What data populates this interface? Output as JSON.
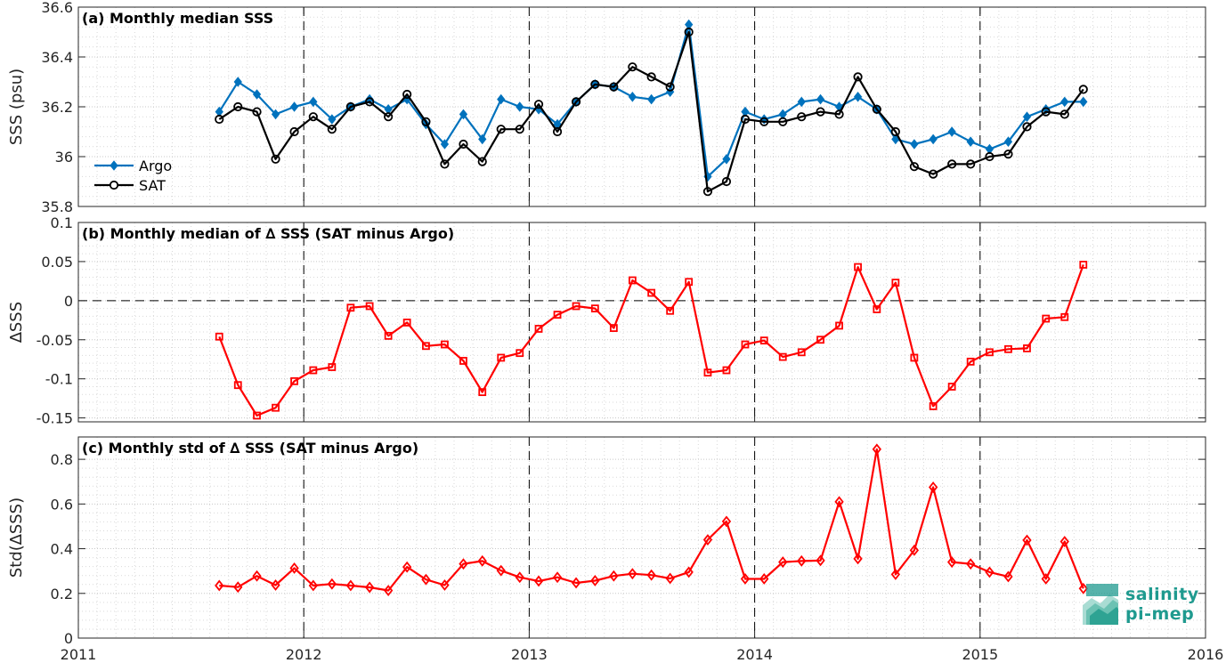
{
  "chart_data": [
    {
      "type": "line",
      "panel": "a",
      "title": "(a) Monthly median SSS",
      "ylabel": "SSS (psu)",
      "xlim": [
        2011,
        2016
      ],
      "ylim": [
        35.8,
        36.6
      ],
      "yticks": [
        "35.8",
        "36",
        "36.2",
        "36.4",
        "36.6"
      ],
      "yvals": [
        35.8,
        36.0,
        36.2,
        36.4,
        36.6
      ],
      "grid": true,
      "legend": "center-left",
      "series": [
        {
          "name": "Argo",
          "color": "#0072bd",
          "marker": "diamond",
          "x": [
            2011.625,
            2011.708,
            2011.792,
            2011.875,
            2011.958,
            2012.042,
            2012.125,
            2012.208,
            2012.292,
            2012.375,
            2012.458,
            2012.542,
            2012.625,
            2012.708,
            2012.792,
            2012.875,
            2012.958,
            2013.042,
            2013.125,
            2013.208,
            2013.292,
            2013.375,
            2013.458,
            2013.542,
            2013.625,
            2013.708,
            2013.792,
            2013.875,
            2013.958,
            2014.042,
            2014.125,
            2014.208,
            2014.292,
            2014.375,
            2014.458,
            2014.542,
            2014.625,
            2014.708,
            2014.792,
            2014.875,
            2014.958,
            2015.042,
            2015.125,
            2015.208,
            2015.292,
            2015.375,
            2015.458
          ],
          "y": [
            36.18,
            36.3,
            36.25,
            36.17,
            36.2,
            36.22,
            36.15,
            36.2,
            36.23,
            36.19,
            36.23,
            36.13,
            36.05,
            36.17,
            36.07,
            36.23,
            36.2,
            36.19,
            36.13,
            36.22,
            36.29,
            36.28,
            36.24,
            36.23,
            36.26,
            36.53,
            35.92,
            35.99,
            36.18,
            36.15,
            36.17,
            36.22,
            36.23,
            36.2,
            36.24,
            36.19,
            36.07,
            36.05,
            36.07,
            36.1,
            36.06,
            36.03,
            36.06,
            36.16,
            36.19,
            36.22,
            36.22
          ]
        },
        {
          "name": "SAT",
          "color": "#000000",
          "marker": "circle",
          "x": [
            2011.625,
            2011.708,
            2011.792,
            2011.875,
            2011.958,
            2012.042,
            2012.125,
            2012.208,
            2012.292,
            2012.375,
            2012.458,
            2012.542,
            2012.625,
            2012.708,
            2012.792,
            2012.875,
            2012.958,
            2013.042,
            2013.125,
            2013.208,
            2013.292,
            2013.375,
            2013.458,
            2013.542,
            2013.625,
            2013.708,
            2013.792,
            2013.875,
            2013.958,
            2014.042,
            2014.125,
            2014.208,
            2014.292,
            2014.375,
            2014.458,
            2014.542,
            2014.625,
            2014.708,
            2014.792,
            2014.875,
            2014.958,
            2015.042,
            2015.125,
            2015.208,
            2015.292,
            2015.375,
            2015.458
          ],
          "y": [
            36.15,
            36.2,
            36.18,
            35.99,
            36.1,
            36.16,
            36.11,
            36.2,
            36.22,
            36.16,
            36.25,
            36.14,
            35.97,
            36.05,
            35.98,
            36.11,
            36.11,
            36.21,
            36.1,
            36.22,
            36.29,
            36.28,
            36.36,
            36.32,
            36.28,
            36.5,
            35.86,
            35.9,
            36.15,
            36.14,
            36.14,
            36.16,
            36.18,
            36.17,
            36.32,
            36.19,
            36.1,
            35.96,
            35.93,
            35.97,
            35.97,
            36.0,
            36.01,
            36.12,
            36.18,
            36.17,
            36.27
          ]
        }
      ]
    },
    {
      "type": "line",
      "panel": "b",
      "title": "(b) Monthly median of ∆ SSS (SAT minus Argo)",
      "ylabel": "∆SSS",
      "xlim": [
        2011,
        2016
      ],
      "ylim": [
        -0.155,
        0.1
      ],
      "yticks": [
        "-0.15",
        "-0.1",
        "-0.05",
        "0",
        "0.05",
        "0.1"
      ],
      "yvals": [
        -0.15,
        -0.1,
        -0.05,
        0,
        0.05,
        0.1
      ],
      "zero_line": true,
      "grid": true,
      "series": [
        {
          "color": "#ff0000",
          "marker": "square",
          "x": [
            2011.625,
            2011.708,
            2011.792,
            2011.875,
            2011.958,
            2012.042,
            2012.125,
            2012.208,
            2012.292,
            2012.375,
            2012.458,
            2012.542,
            2012.625,
            2012.708,
            2012.792,
            2012.875,
            2012.958,
            2013.042,
            2013.125,
            2013.208,
            2013.292,
            2013.375,
            2013.458,
            2013.542,
            2013.625,
            2013.708,
            2013.792,
            2013.875,
            2013.958,
            2014.042,
            2014.125,
            2014.208,
            2014.292,
            2014.375,
            2014.458,
            2014.542,
            2014.625,
            2014.708,
            2014.792,
            2014.875,
            2014.958,
            2015.042,
            2015.125,
            2015.208,
            2015.292,
            2015.375,
            2015.458
          ],
          "y": [
            -0.046,
            -0.108,
            -0.147,
            -0.137,
            -0.103,
            -0.089,
            -0.085,
            -0.009,
            -0.007,
            -0.045,
            -0.028,
            -0.058,
            -0.056,
            -0.077,
            -0.117,
            -0.073,
            -0.067,
            -0.036,
            -0.018,
            -0.007,
            -0.01,
            -0.035,
            0.026,
            0.01,
            -0.013,
            0.024,
            -0.092,
            -0.089,
            -0.056,
            -0.051,
            -0.072,
            -0.066,
            -0.05,
            -0.032,
            0.043,
            -0.011,
            0.023,
            -0.073,
            -0.135,
            -0.11,
            -0.078,
            -0.066,
            -0.062,
            -0.061,
            -0.023,
            -0.021,
            0.046
          ]
        }
      ]
    },
    {
      "type": "line",
      "panel": "c",
      "title": "(c) Monthly std of ∆ SSS (SAT minus Argo)",
      "ylabel": "Std(∆SSS)",
      "xlim": [
        2011,
        2016
      ],
      "ylim": [
        0,
        0.9
      ],
      "yticks": [
        "0",
        "0.2",
        "0.4",
        "0.6",
        "0.8"
      ],
      "yvals": [
        0,
        0.2,
        0.4,
        0.6,
        0.8
      ],
      "grid": true,
      "series": [
        {
          "color": "#ff0000",
          "marker": "diamond",
          "x": [
            2011.625,
            2011.708,
            2011.792,
            2011.875,
            2011.958,
            2012.042,
            2012.125,
            2012.208,
            2012.292,
            2012.375,
            2012.458,
            2012.542,
            2012.625,
            2012.708,
            2012.792,
            2012.875,
            2012.958,
            2013.042,
            2013.125,
            2013.208,
            2013.292,
            2013.375,
            2013.458,
            2013.542,
            2013.625,
            2013.708,
            2013.792,
            2013.875,
            2013.958,
            2014.042,
            2014.125,
            2014.208,
            2014.292,
            2014.375,
            2014.458,
            2014.542,
            2014.625,
            2014.708,
            2014.792,
            2014.875,
            2014.958,
            2015.042,
            2015.125,
            2015.208,
            2015.292,
            2015.375,
            2015.458
          ],
          "y": [
            0.235,
            0.228,
            0.278,
            0.237,
            0.313,
            0.235,
            0.242,
            0.235,
            0.227,
            0.213,
            0.318,
            0.262,
            0.237,
            0.332,
            0.345,
            0.302,
            0.272,
            0.255,
            0.272,
            0.247,
            0.257,
            0.278,
            0.288,
            0.282,
            0.267,
            0.295,
            0.44,
            0.522,
            0.265,
            0.265,
            0.34,
            0.345,
            0.347,
            0.61,
            0.355,
            0.845,
            0.285,
            0.393,
            0.675,
            0.34,
            0.332,
            0.295,
            0.275,
            0.438,
            0.265,
            0.432,
            0.222
          ]
        }
      ]
    }
  ],
  "xaxis": {
    "ticks": [
      "2011",
      "2012",
      "2013",
      "2014",
      "2015",
      "2016"
    ],
    "vals": [
      2011,
      2012,
      2013,
      2014,
      2015,
      2016
    ]
  },
  "logo": {
    "line1": "salinity",
    "line2": "pi-mep"
  }
}
